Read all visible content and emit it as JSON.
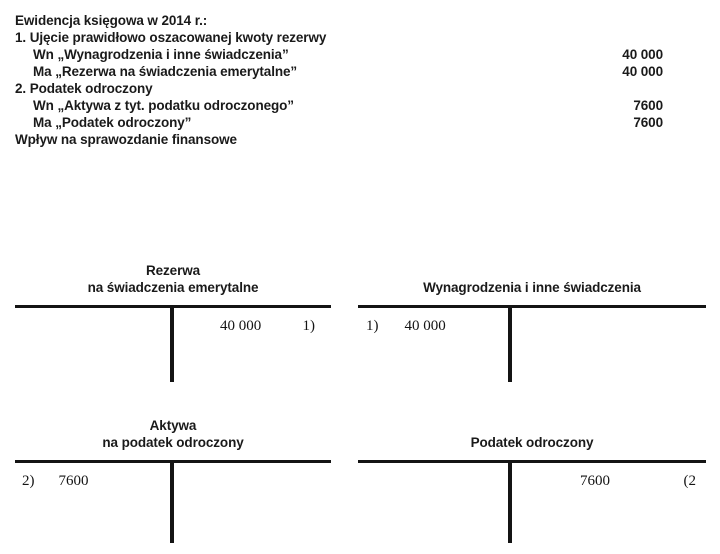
{
  "ledger_text": {
    "heading": "Ewidencja księgowa w 2014 r.:",
    "entries": [
      {
        "label": "1. Ujęcie prawidłowo oszacowanej kwoty rezerwy",
        "value": ""
      },
      {
        "label": "Wn „Wynagrodzenia i inne świadczenia”",
        "value": "40 000"
      },
      {
        "label": "Ma „Rezerwa na świadczenia emerytalne”",
        "value": "40 000"
      },
      {
        "label": "2. Podatek odroczony",
        "value": ""
      },
      {
        "label": "Wn „Aktywa z tyt. podatku odroczonego”",
        "value": "7600"
      },
      {
        "label": "Ma „Podatek odroczony”",
        "value": "7600"
      },
      {
        "label": "Wpływ na sprawozdanie finansowe",
        "value": ""
      }
    ]
  },
  "t_accounts": [
    {
      "title_line1": "Rezerwa",
      "title_line2": "na świadczenia emerytalne",
      "credit_amount": "40 000",
      "credit_ref": "1)"
    },
    {
      "title_line1": "Wynagrodzenia i inne świadczenia",
      "title_line2": "",
      "debit_ref": "1)",
      "debit_amount": "40 000"
    },
    {
      "title_line1": "Aktywa",
      "title_line2": "na podatek odroczony",
      "debit_ref": "2)",
      "debit_amount": "7600"
    },
    {
      "title_line1": "Podatek odroczony",
      "title_line2": "",
      "credit_amount": "7600",
      "credit_ref": "(2"
    }
  ]
}
